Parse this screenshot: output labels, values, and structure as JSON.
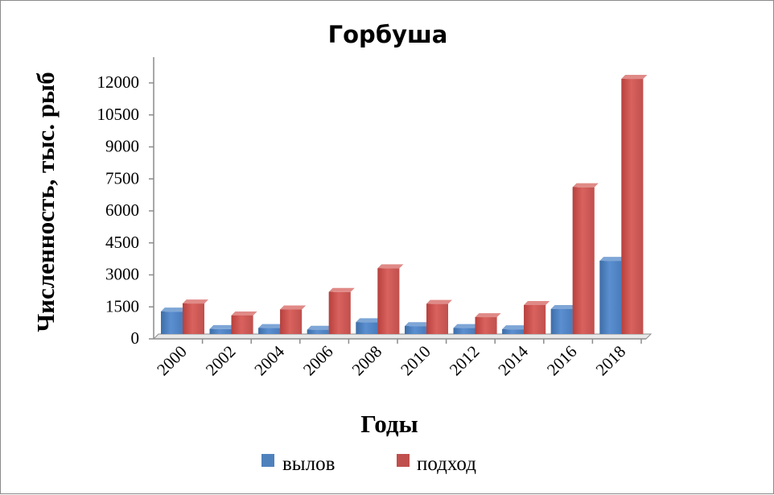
{
  "chart_data": {
    "type": "bar",
    "title": "Горбуша",
    "xlabel": "Годы",
    "ylabel": "Численность, тыс. рыб",
    "categories": [
      "2000",
      "2002",
      "2004",
      "2006",
      "2008",
      "2010",
      "2012",
      "2014",
      "2016",
      "2018"
    ],
    "yticks": [
      "0",
      "1500",
      "3000",
      "4500",
      "6000",
      "7500",
      "9000",
      "10500",
      "12000"
    ],
    "ylim": [
      0,
      12000
    ],
    "grid": false,
    "legend_position": "bottom",
    "series": [
      {
        "name": "вылов",
        "color": "#4f81bd",
        "values": [
          1050,
          230,
          280,
          200,
          550,
          370,
          280,
          220,
          1170,
          3430
        ]
      },
      {
        "name": "подход",
        "color": "#c0504d",
        "values": [
          1430,
          870,
          1150,
          1970,
          3080,
          1410,
          790,
          1360,
          6880,
          11960
        ]
      }
    ]
  }
}
